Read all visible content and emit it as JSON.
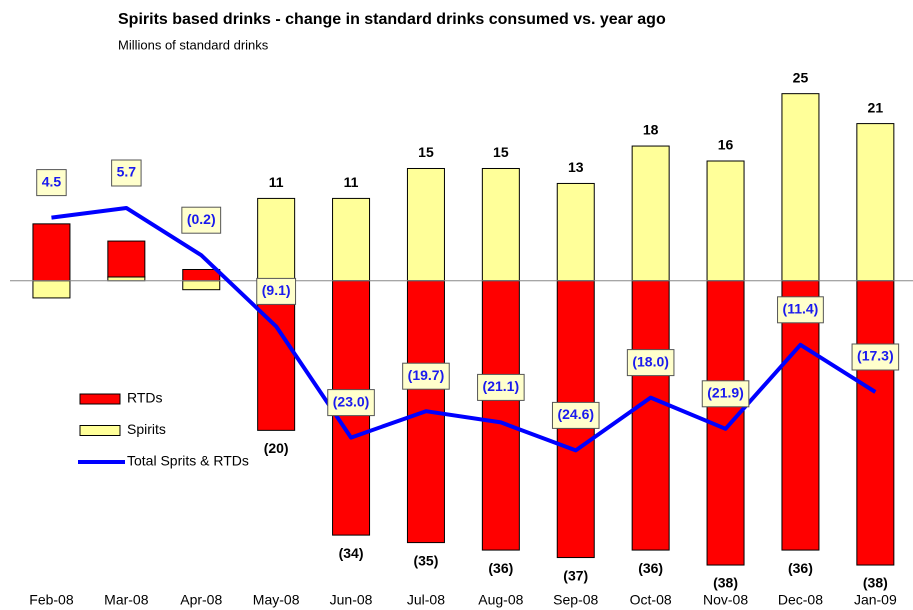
{
  "chart_data": {
    "type": "bar",
    "stacked": true,
    "title": "Spirits based drinks - change in standard drinks consumed vs. year ago",
    "subtitle": "Millions of standard drinks",
    "categories": [
      "Feb-08",
      "Mar-08",
      "Apr-08",
      "May-08",
      "Jun-08",
      "Jul-08",
      "Aug-08",
      "Sep-08",
      "Oct-08",
      "Nov-08",
      "Dec-08",
      "Jan-09"
    ],
    "series": [
      {
        "name": "RTDs",
        "color": "#ff0000",
        "values": [
          7.6,
          4.8,
          1.5,
          -20,
          -34,
          -35,
          -36,
          -37,
          -36,
          -38,
          -36,
          -38
        ],
        "value_labels": [
          null,
          null,
          null,
          "(20)",
          "(34)",
          "(35)",
          "(36)",
          "(37)",
          "(36)",
          "(38)",
          "(36)",
          "(38)"
        ]
      },
      {
        "name": "Spirits",
        "color": "#ffff99",
        "values": [
          -2.3,
          0.5,
          -1.2,
          11,
          11,
          15,
          15,
          13,
          18,
          16,
          25,
          21
        ],
        "value_labels": [
          null,
          null,
          null,
          "11",
          "11",
          "15",
          "15",
          "13",
          "18",
          "16",
          "25",
          "21"
        ]
      },
      {
        "name": "Total Sprits & RTDs",
        "type": "line",
        "axis": "y2",
        "color": "#0000ff",
        "values": [
          4.5,
          5.7,
          -0.2,
          -9.1,
          -23.0,
          -19.7,
          -21.1,
          -24.6,
          -18.0,
          -21.9,
          -11.4,
          -17.3
        ],
        "value_labels": [
          "4.5",
          "5.7",
          "(0.2)",
          "(9.1)",
          "(23.0)",
          "(19.7)",
          "(21.1)",
          "(24.6)",
          "(18.0)",
          "(21.9)",
          "(11.4)",
          "(17.3)"
        ]
      }
    ],
    "ylim": [
      -40,
      29.5
    ],
    "y2lim": [
      -40.8,
      24.2
    ]
  }
}
